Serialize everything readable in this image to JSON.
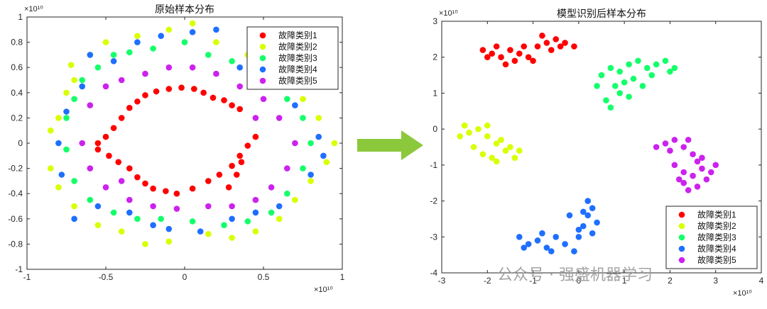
{
  "watermark": "公众号 · 强盛机器学习",
  "colors": {
    "c1": "#ff0000",
    "c2": "#d9ff00",
    "c3": "#14ff6a",
    "c4": "#1f6fff",
    "c5": "#cc22ee",
    "arrow": "#8cc83c"
  },
  "chart_data": [
    {
      "type": "scatter",
      "title": "原始样本分布",
      "xlim": [
        -1,
        1
      ],
      "ylim": [
        -1,
        1
      ],
      "xticks": [
        -1,
        -0.5,
        0,
        0.5,
        1
      ],
      "yticks": [
        -1,
        -0.8,
        -0.6,
        -0.4,
        -0.2,
        0,
        0.2,
        0.4,
        0.6,
        0.8,
        1
      ],
      "xtick_labels": [
        "-1",
        "-0.5",
        "0",
        "0.5",
        "1"
      ],
      "ytick_labels": [
        "-1",
        "-0.8",
        "-0.6",
        "-0.4",
        "-0.2",
        "0",
        "0.2",
        "0.4",
        "0.6",
        "0.8",
        "1"
      ],
      "x_exponent": "×10¹⁰",
      "y_exponent": "×10¹⁰",
      "legend": "top-right",
      "series": [
        {
          "name": "故障类别1",
          "color": "#ff0000",
          "points": [
            [
              -0.55,
              0.0
            ],
            [
              -0.5,
              0.05
            ],
            [
              -0.45,
              0.12
            ],
            [
              -0.4,
              0.2
            ],
            [
              -0.35,
              0.28
            ],
            [
              -0.3,
              0.33
            ],
            [
              -0.25,
              0.38
            ],
            [
              -0.18,
              0.41
            ],
            [
              -0.1,
              0.43
            ],
            [
              -0.02,
              0.44
            ],
            [
              0.06,
              0.43
            ],
            [
              0.12,
              0.4
            ],
            [
              0.18,
              0.36
            ],
            [
              0.25,
              0.34
            ],
            [
              0.3,
              0.3
            ],
            [
              0.35,
              0.27
            ],
            [
              -0.55,
              -0.05
            ],
            [
              -0.48,
              -0.1
            ],
            [
              -0.42,
              -0.15
            ],
            [
              -0.35,
              -0.2
            ],
            [
              -0.3,
              -0.27
            ],
            [
              -0.25,
              -0.32
            ],
            [
              -0.2,
              -0.36
            ],
            [
              -0.12,
              -0.38
            ],
            [
              -0.05,
              -0.4
            ],
            [
              0.05,
              -0.36
            ],
            [
              0.15,
              -0.3
            ],
            [
              0.22,
              -0.25
            ],
            [
              0.3,
              -0.18
            ],
            [
              0.35,
              -0.1
            ],
            [
              0.4,
              -0.02
            ],
            [
              0.45,
              0.05
            ],
            [
              0.33,
              -0.25
            ],
            [
              0.28,
              -0.35
            ],
            [
              0.36,
              -0.15
            ]
          ]
        },
        {
          "name": "故障类别2",
          "color": "#d9ff00",
          "points": [
            [
              -0.85,
              0.1
            ],
            [
              -0.8,
              0.2
            ],
            [
              -0.75,
              0.4
            ],
            [
              -0.7,
              0.5
            ],
            [
              -0.6,
              0.7
            ],
            [
              -0.5,
              0.8
            ],
            [
              -0.3,
              0.85
            ],
            [
              -0.1,
              0.9
            ],
            [
              0.05,
              0.95
            ],
            [
              0.2,
              0.8
            ],
            [
              0.4,
              0.7
            ],
            [
              0.6,
              0.55
            ],
            [
              0.75,
              0.35
            ],
            [
              0.85,
              0.2
            ],
            [
              0.95,
              0.0
            ],
            [
              0.9,
              -0.15
            ],
            [
              0.8,
              -0.3
            ],
            [
              0.7,
              -0.45
            ],
            [
              0.6,
              -0.6
            ],
            [
              0.45,
              -0.7
            ],
            [
              0.3,
              -0.75
            ],
            [
              0.15,
              -0.72
            ],
            [
              -0.1,
              -0.78
            ],
            [
              -0.25,
              -0.8
            ],
            [
              -0.4,
              -0.7
            ],
            [
              -0.55,
              -0.65
            ],
            [
              -0.7,
              -0.5
            ],
            [
              -0.8,
              -0.35
            ],
            [
              -0.85,
              -0.2
            ],
            [
              -0.72,
              0.62
            ]
          ]
        },
        {
          "name": "故障类别3",
          "color": "#14ff6a",
          "points": [
            [
              -0.75,
              0.2
            ],
            [
              -0.7,
              0.35
            ],
            [
              -0.65,
              0.5
            ],
            [
              -0.55,
              0.6
            ],
            [
              -0.45,
              0.7
            ],
            [
              -0.35,
              0.72
            ],
            [
              -0.2,
              0.75
            ],
            [
              0.0,
              0.8
            ],
            [
              0.15,
              0.7
            ],
            [
              0.3,
              0.65
            ],
            [
              0.5,
              0.5
            ],
            [
              0.65,
              0.35
            ],
            [
              0.75,
              0.2
            ],
            [
              0.8,
              0.0
            ],
            [
              0.75,
              -0.2
            ],
            [
              0.65,
              -0.4
            ],
            [
              0.55,
              -0.55
            ],
            [
              0.4,
              -0.62
            ],
            [
              0.25,
              -0.65
            ],
            [
              0.05,
              -0.62
            ],
            [
              -0.15,
              -0.6
            ],
            [
              -0.3,
              -0.6
            ],
            [
              -0.45,
              -0.55
            ],
            [
              -0.6,
              -0.45
            ],
            [
              -0.7,
              -0.3
            ],
            [
              -0.75,
              -0.05
            ]
          ]
        },
        {
          "name": "故障类别4",
          "color": "#1f6fff",
          "points": [
            [
              -0.8,
              0.0
            ],
            [
              -0.75,
              0.25
            ],
            [
              -0.65,
              0.45
            ],
            [
              -0.6,
              0.7
            ],
            [
              -0.45,
              0.65
            ],
            [
              -0.3,
              0.8
            ],
            [
              -0.15,
              0.85
            ],
            [
              0.05,
              0.88
            ],
            [
              0.2,
              0.9
            ],
            [
              0.35,
              0.6
            ],
            [
              0.55,
              0.45
            ],
            [
              0.7,
              0.3
            ],
            [
              0.85,
              0.05
            ],
            [
              0.88,
              -0.1
            ],
            [
              0.8,
              -0.25
            ],
            [
              0.6,
              -0.5
            ],
            [
              0.45,
              -0.55
            ],
            [
              0.3,
              -0.6
            ],
            [
              0.1,
              -0.7
            ],
            [
              -0.1,
              -0.68
            ],
            [
              -0.2,
              -0.65
            ],
            [
              -0.35,
              -0.55
            ],
            [
              -0.55,
              -0.5
            ],
            [
              -0.7,
              -0.6
            ],
            [
              -0.78,
              -0.25
            ]
          ]
        },
        {
          "name": "故障类别5",
          "color": "#cc22ee",
          "points": [
            [
              -0.65,
              0.0
            ],
            [
              -0.6,
              0.3
            ],
            [
              -0.5,
              0.45
            ],
            [
              -0.4,
              0.5
            ],
            [
              -0.25,
              0.55
            ],
            [
              -0.1,
              0.6
            ],
            [
              0.05,
              0.6
            ],
            [
              0.2,
              0.55
            ],
            [
              0.35,
              0.45
            ],
            [
              0.5,
              0.35
            ],
            [
              0.6,
              0.2
            ],
            [
              0.7,
              0.0
            ],
            [
              0.65,
              -0.2
            ],
            [
              0.55,
              -0.35
            ],
            [
              0.45,
              -0.45
            ],
            [
              0.3,
              -0.5
            ],
            [
              0.15,
              -0.5
            ],
            [
              -0.05,
              -0.52
            ],
            [
              -0.2,
              -0.5
            ],
            [
              -0.35,
              -0.45
            ],
            [
              -0.5,
              -0.35
            ],
            [
              -0.6,
              -0.2
            ],
            [
              -0.4,
              -0.3
            ],
            [
              0.45,
              0.2
            ]
          ]
        }
      ]
    },
    {
      "type": "scatter",
      "title": "模型识别后样本分布",
      "xlim": [
        -3,
        4
      ],
      "ylim": [
        -4,
        3
      ],
      "xticks": [
        -3,
        -2,
        -1,
        0,
        1,
        2,
        3,
        4
      ],
      "yticks": [
        -4,
        -3,
        -2,
        -1,
        0,
        1,
        2,
        3
      ],
      "xtick_labels": [
        "-3",
        "-2",
        "-1",
        "0",
        "1",
        "2",
        "3",
        "4"
      ],
      "ytick_labels": [
        "-4",
        "-3",
        "-2",
        "-1",
        "0",
        "1",
        "2",
        "3"
      ],
      "x_exponent": "×10¹⁰",
      "y_exponent": "×10¹⁰",
      "legend": "bottom-right",
      "series": [
        {
          "name": "故障类别1",
          "color": "#ff0000",
          "points": [
            [
              -2.1,
              2.2
            ],
            [
              -1.9,
              2.1
            ],
            [
              -1.7,
              2.0
            ],
            [
              -1.5,
              2.2
            ],
            [
              -1.3,
              2.1
            ],
            [
              -1.1,
              2.0
            ],
            [
              -0.9,
              2.3
            ],
            [
              -0.7,
              2.4
            ],
            [
              -0.5,
              2.5
            ],
            [
              -0.3,
              2.4
            ],
            [
              -0.1,
              2.3
            ],
            [
              -1.8,
              2.3
            ],
            [
              -1.6,
              1.8
            ],
            [
              -1.4,
              1.9
            ],
            [
              -1.2,
              2.3
            ],
            [
              -0.8,
              2.6
            ],
            [
              -0.6,
              2.2
            ],
            [
              -0.4,
              2.3
            ],
            [
              -2.0,
              2.0
            ],
            [
              -1.0,
              1.9
            ]
          ]
        },
        {
          "name": "故障类别2",
          "color": "#d9ff00",
          "points": [
            [
              -2.6,
              -0.2
            ],
            [
              -2.4,
              -0.1
            ],
            [
              -2.2,
              0.0
            ],
            [
              -2.0,
              -0.2
            ],
            [
              -1.8,
              -0.4
            ],
            [
              -1.6,
              -0.6
            ],
            [
              -1.4,
              -0.8
            ],
            [
              -2.3,
              -0.5
            ],
            [
              -2.1,
              -0.7
            ],
            [
              -1.9,
              -0.8
            ],
            [
              -1.7,
              -0.3
            ],
            [
              -1.5,
              -0.5
            ],
            [
              -2.5,
              0.1
            ],
            [
              -2.0,
              0.1
            ],
            [
              -1.3,
              -0.6
            ],
            [
              -1.8,
              -0.9
            ]
          ]
        },
        {
          "name": "故障类别3",
          "color": "#14ff6a",
          "points": [
            [
              0.5,
              1.5
            ],
            [
              0.7,
              1.7
            ],
            [
              0.9,
              1.6
            ],
            [
              1.1,
              1.8
            ],
            [
              1.3,
              1.9
            ],
            [
              1.5,
              1.7
            ],
            [
              1.7,
              1.8
            ],
            [
              1.9,
              1.9
            ],
            [
              2.1,
              1.7
            ],
            [
              0.8,
              1.2
            ],
            [
              1.0,
              1.3
            ],
            [
              1.2,
              1.4
            ],
            [
              0.9,
              1.0
            ],
            [
              1.1,
              0.9
            ],
            [
              0.7,
              0.6
            ],
            [
              0.4,
              1.2
            ],
            [
              1.6,
              1.5
            ],
            [
              1.4,
              1.2
            ],
            [
              0.6,
              0.8
            ],
            [
              2.0,
              1.6
            ]
          ]
        },
        {
          "name": "故障类别4",
          "color": "#1f6fff",
          "points": [
            [
              -1.3,
              -3.0
            ],
            [
              -1.1,
              -3.2
            ],
            [
              -0.9,
              -3.1
            ],
            [
              -0.7,
              -3.3
            ],
            [
              -0.5,
              -3.0
            ],
            [
              -0.3,
              -3.2
            ],
            [
              -0.1,
              -3.4
            ],
            [
              0.0,
              -3.0
            ],
            [
              0.1,
              -2.7
            ],
            [
              0.2,
              -2.4
            ],
            [
              0.3,
              -2.2
            ],
            [
              0.4,
              -2.6
            ],
            [
              0.2,
              -2.0
            ],
            [
              -0.2,
              -2.4
            ],
            [
              0.0,
              -2.8
            ],
            [
              -0.6,
              -3.4
            ],
            [
              -1.2,
              -3.3
            ],
            [
              -0.8,
              -2.9
            ],
            [
              0.3,
              -2.9
            ],
            [
              0.1,
              -2.3
            ]
          ]
        },
        {
          "name": "故障类别5",
          "color": "#cc22ee",
          "points": [
            [
              1.7,
              -0.5
            ],
            [
              1.9,
              -0.4
            ],
            [
              2.1,
              -0.3
            ],
            [
              2.3,
              -0.5
            ],
            [
              2.5,
              -0.7
            ],
            [
              2.6,
              -0.9
            ],
            [
              2.7,
              -1.1
            ],
            [
              2.5,
              -1.3
            ],
            [
              2.3,
              -1.2
            ],
            [
              2.1,
              -1.0
            ],
            [
              2.9,
              -1.2
            ],
            [
              2.8,
              -1.4
            ],
            [
              2.6,
              -1.6
            ],
            [
              2.4,
              -1.7
            ],
            [
              2.2,
              -1.4
            ],
            [
              3.0,
              -1.0
            ],
            [
              2.0,
              -0.6
            ],
            [
              2.4,
              -0.3
            ],
            [
              2.7,
              -0.8
            ],
            [
              2.3,
              -1.5
            ]
          ]
        }
      ]
    }
  ]
}
